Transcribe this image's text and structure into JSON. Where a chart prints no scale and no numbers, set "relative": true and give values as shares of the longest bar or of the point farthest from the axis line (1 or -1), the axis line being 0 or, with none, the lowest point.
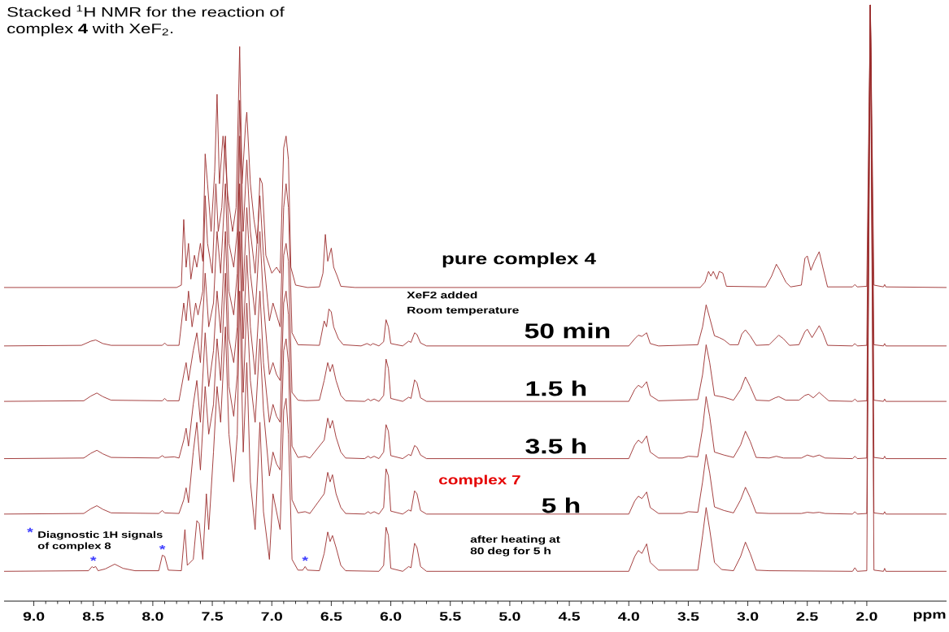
{
  "chart_data": {
    "type": "line",
    "relative": true,
    "title": "Stacked $^{1}$H NMR for the reaction of complex **4** with XeF$_{2}$.",
    "xlabel": "ppm",
    "xlim": [
      9.25,
      1.33
    ],
    "xticks": [
      {
        "value": 9.0,
        "label": "9.0"
      },
      {
        "value": 8.5,
        "label": "8.5"
      },
      {
        "value": 8.0,
        "label": "8.0"
      },
      {
        "value": 7.5,
        "label": "7.5"
      },
      {
        "value": 7.0,
        "label": "7.0"
      },
      {
        "value": 6.5,
        "label": "6.5"
      },
      {
        "value": 6.0,
        "label": "6.0"
      },
      {
        "value": 5.5,
        "label": "5.5"
      },
      {
        "value": 5.0,
        "label": "5.0"
      },
      {
        "value": 4.5,
        "label": "4.5"
      },
      {
        "value": 4.0,
        "label": "4.0"
      },
      {
        "value": 3.5,
        "label": "3.5"
      },
      {
        "value": 3.0,
        "label": "3.0"
      },
      {
        "value": 2.5,
        "label": "2.5"
      },
      {
        "value": 2.0,
        "label": "2.0"
      }
    ],
    "annotations": [
      "XeF2 added",
      "Room temperature",
      "complex 7",
      "*",
      "Diagnostic 1H signals of complex **8**",
      {
        "text": "*",
        "x": 8.5,
        "y": 0.058
      },
      {
        "text": "*",
        "x": 7.92,
        "y": 0.077
      },
      {
        "text": "*",
        "x": 6.72,
        "y": 0.058
      }
    ],
    "series": [
      {
        "name": "pure complex **4**",
        "color": "#9b2c2c",
        "x": [
          9.25,
          7.8,
          7.76,
          7.74,
          7.72,
          7.7,
          7.68,
          7.65,
          7.63,
          7.6,
          7.58,
          7.56,
          7.54,
          7.51,
          7.48,
          7.46,
          7.44,
          7.41,
          7.39,
          7.37,
          7.33,
          7.3,
          7.27,
          7.25,
          7.22,
          7.21,
          7.18,
          7.15,
          7.12,
          7.1,
          7.08,
          7.05,
          7.0,
          6.96,
          6.93,
          6.9,
          6.88,
          6.86,
          6.84,
          6.8,
          6.7,
          6.6,
          6.57,
          6.55,
          6.53,
          6.5,
          6.48,
          6.45,
          6.42,
          6.3,
          3.4,
          3.36,
          3.33,
          3.31,
          3.29,
          3.26,
          3.24,
          3.21,
          3.18,
          2.85,
          2.8,
          2.76,
          2.73,
          2.68,
          2.64,
          2.55,
          2.52,
          2.5,
          2.47,
          2.44,
          2.4,
          2.37,
          2.33,
          2.12,
          2.1,
          2.08,
          2.0,
          1.97,
          1.94,
          1.86,
          1.85,
          1.84,
          1.33
        ],
        "values": [
          0.526,
          0.526,
          0.53,
          0.64,
          0.56,
          0.6,
          0.54,
          0.58,
          0.56,
          0.6,
          0.57,
          0.75,
          0.7,
          0.62,
          0.72,
          0.85,
          0.7,
          0.78,
          0.74,
          0.68,
          0.62,
          0.66,
          0.93,
          0.7,
          0.8,
          0.82,
          0.7,
          0.64,
          0.6,
          0.71,
          0.7,
          0.58,
          0.55,
          0.56,
          0.55,
          0.76,
          0.78,
          0.74,
          0.56,
          0.53,
          0.526,
          0.527,
          0.55,
          0.615,
          0.57,
          0.592,
          0.56,
          0.545,
          0.528,
          0.526,
          0.526,
          0.535,
          0.553,
          0.545,
          0.553,
          0.54,
          0.553,
          0.55,
          0.528,
          0.527,
          0.545,
          0.565,
          0.555,
          0.535,
          0.527,
          0.53,
          0.575,
          0.579,
          0.555,
          0.57,
          0.586,
          0.56,
          0.527,
          0.527,
          0.531,
          0.527,
          0.528,
          1.0,
          0.53,
          0.527,
          0.531,
          0.527,
          0.526
        ]
      },
      {
        "name": "50 min",
        "color": "#9b2c2c",
        "x": [
          9.25,
          8.6,
          8.52,
          8.48,
          8.42,
          8.35,
          7.92,
          7.9,
          7.88,
          7.78,
          7.74,
          7.72,
          7.7,
          7.67,
          7.64,
          7.62,
          7.58,
          7.56,
          7.54,
          7.5,
          7.47,
          7.45,
          7.42,
          7.39,
          7.36,
          7.32,
          7.29,
          7.27,
          7.24,
          7.21,
          7.18,
          7.14,
          7.1,
          7.07,
          7.02,
          6.99,
          6.96,
          6.93,
          6.9,
          6.88,
          6.86,
          6.83,
          6.78,
          6.6,
          6.56,
          6.54,
          6.52,
          6.5,
          6.48,
          6.44,
          6.4,
          6.25,
          6.2,
          6.17,
          6.15,
          6.1,
          6.06,
          6.04,
          6.02,
          6.0,
          5.9,
          5.85,
          5.83,
          5.8,
          5.78,
          5.75,
          5.7,
          4.0,
          3.95,
          3.92,
          3.89,
          3.85,
          3.82,
          3.75,
          3.42,
          3.38,
          3.35,
          3.32,
          3.28,
          3.24,
          3.2,
          3.15,
          3.08,
          3.05,
          3.02,
          2.98,
          2.93,
          2.82,
          2.77,
          2.74,
          2.7,
          2.65,
          2.57,
          2.52,
          2.5,
          2.46,
          2.4,
          2.37,
          2.33,
          2.12,
          2.1,
          2.08,
          2.0,
          1.97,
          1.94,
          1.86,
          1.85,
          1.84,
          1.33
        ],
        "values": [
          0.428,
          0.429,
          0.436,
          0.438,
          0.432,
          0.429,
          0.429,
          0.433,
          0.429,
          0.429,
          0.5,
          0.47,
          0.52,
          0.46,
          0.5,
          0.48,
          0.52,
          0.68,
          0.6,
          0.55,
          0.7,
          0.62,
          0.66,
          0.78,
          0.6,
          0.56,
          0.62,
          0.84,
          0.62,
          0.74,
          0.62,
          0.55,
          0.68,
          0.58,
          0.47,
          0.5,
          0.48,
          0.46,
          0.66,
          0.7,
          0.66,
          0.45,
          0.43,
          0.429,
          0.47,
          0.46,
          0.49,
          0.485,
          0.46,
          0.44,
          0.43,
          0.428,
          0.432,
          0.429,
          0.432,
          0.428,
          0.435,
          0.472,
          0.46,
          0.432,
          0.428,
          0.436,
          0.434,
          0.45,
          0.447,
          0.433,
          0.428,
          0.428,
          0.44,
          0.446,
          0.444,
          0.45,
          0.432,
          0.428,
          0.43,
          0.46,
          0.497,
          0.475,
          0.445,
          0.442,
          0.438,
          0.43,
          0.43,
          0.448,
          0.455,
          0.445,
          0.429,
          0.43,
          0.44,
          0.446,
          0.44,
          0.429,
          0.43,
          0.452,
          0.456,
          0.442,
          0.462,
          0.45,
          0.429,
          0.428,
          0.432,
          0.428,
          0.429,
          1.0,
          0.43,
          0.428,
          0.432,
          0.428,
          0.428
        ]
      },
      {
        "name": "1.5 h",
        "color": "#9b2c2c",
        "x": [
          9.25,
          8.58,
          8.52,
          8.47,
          8.42,
          8.35,
          7.92,
          7.9,
          7.88,
          7.78,
          7.74,
          7.72,
          7.7,
          7.66,
          7.63,
          7.6,
          7.56,
          7.53,
          7.49,
          7.46,
          7.43,
          7.39,
          7.36,
          7.32,
          7.29,
          7.27,
          7.24,
          7.21,
          7.18,
          7.14,
          7.1,
          7.07,
          7.02,
          6.99,
          6.96,
          6.93,
          6.9,
          6.88,
          6.86,
          6.83,
          6.78,
          6.72,
          6.6,
          6.56,
          6.53,
          6.51,
          6.49,
          6.46,
          6.42,
          6.38,
          6.22,
          6.19,
          6.17,
          6.14,
          6.1,
          6.06,
          6.04,
          6.02,
          6.0,
          5.9,
          5.85,
          5.83,
          5.8,
          5.78,
          5.75,
          5.7,
          4.0,
          3.95,
          3.92,
          3.89,
          3.85,
          3.82,
          3.75,
          3.42,
          3.38,
          3.35,
          3.32,
          3.28,
          3.2,
          3.12,
          3.06,
          3.02,
          2.98,
          2.93,
          2.82,
          2.77,
          2.74,
          2.68,
          2.57,
          2.52,
          2.49,
          2.45,
          2.4,
          2.36,
          2.32,
          2.12,
          2.1,
          2.08,
          2.0,
          1.97,
          1.94,
          1.86,
          1.85,
          1.84,
          1.33
        ],
        "values": [
          0.335,
          0.336,
          0.344,
          0.349,
          0.343,
          0.337,
          0.336,
          0.34,
          0.336,
          0.336,
          0.38,
          0.4,
          0.37,
          0.42,
          0.45,
          0.4,
          0.55,
          0.46,
          0.5,
          0.62,
          0.55,
          0.7,
          0.52,
          0.48,
          0.55,
          0.78,
          0.52,
          0.66,
          0.55,
          0.48,
          0.62,
          0.5,
          0.38,
          0.4,
          0.38,
          0.37,
          0.58,
          0.6,
          0.57,
          0.35,
          0.337,
          0.336,
          0.337,
          0.37,
          0.4,
          0.385,
          0.397,
          0.37,
          0.345,
          0.336,
          0.335,
          0.339,
          0.336,
          0.339,
          0.335,
          0.345,
          0.406,
          0.39,
          0.34,
          0.335,
          0.342,
          0.34,
          0.371,
          0.366,
          0.341,
          0.335,
          0.335,
          0.355,
          0.362,
          0.358,
          0.368,
          0.345,
          0.336,
          0.338,
          0.38,
          0.43,
          0.4,
          0.345,
          0.342,
          0.337,
          0.355,
          0.376,
          0.36,
          0.337,
          0.336,
          0.341,
          0.343,
          0.337,
          0.337,
          0.345,
          0.347,
          0.341,
          0.35,
          0.343,
          0.336,
          0.335,
          0.339,
          0.335,
          0.336,
          1.0,
          0.337,
          0.335,
          0.339,
          0.335,
          0.335
        ]
      },
      {
        "name": "3.5 h",
        "color": "#9b2c2c",
        "x": [
          9.25,
          8.58,
          8.52,
          8.47,
          8.42,
          8.35,
          7.95,
          7.92,
          7.9,
          7.82,
          7.78,
          7.74,
          7.72,
          7.7,
          7.66,
          7.63,
          7.6,
          7.56,
          7.53,
          7.49,
          7.46,
          7.43,
          7.39,
          7.36,
          7.32,
          7.29,
          7.27,
          7.24,
          7.21,
          7.18,
          7.14,
          7.1,
          7.07,
          7.02,
          6.99,
          6.96,
          6.93,
          6.9,
          6.88,
          6.86,
          6.83,
          6.78,
          6.72,
          6.68,
          6.56,
          6.53,
          6.51,
          6.49,
          6.46,
          6.42,
          6.38,
          6.22,
          6.19,
          6.17,
          6.14,
          6.1,
          6.06,
          6.04,
          6.02,
          6.0,
          5.9,
          5.85,
          5.83,
          5.8,
          5.78,
          5.75,
          5.7,
          4.0,
          3.95,
          3.92,
          3.89,
          3.85,
          3.82,
          3.75,
          3.55,
          3.5,
          3.42,
          3.38,
          3.35,
          3.32,
          3.28,
          3.2,
          3.12,
          3.06,
          3.02,
          2.98,
          2.93,
          2.82,
          2.76,
          2.7,
          2.55,
          2.5,
          2.45,
          2.4,
          2.35,
          2.12,
          2.1,
          2.08,
          2.0,
          1.97,
          1.94,
          1.86,
          1.85,
          1.84,
          1.33
        ],
        "values": [
          0.239,
          0.24,
          0.248,
          0.253,
          0.247,
          0.241,
          0.24,
          0.244,
          0.241,
          0.242,
          0.24,
          0.27,
          0.29,
          0.26,
          0.33,
          0.37,
          0.3,
          0.45,
          0.36,
          0.42,
          0.52,
          0.45,
          0.62,
          0.44,
          0.4,
          0.46,
          0.7,
          0.44,
          0.58,
          0.46,
          0.38,
          0.52,
          0.4,
          0.3,
          0.33,
          0.31,
          0.3,
          0.5,
          0.52,
          0.48,
          0.26,
          0.241,
          0.243,
          0.24,
          0.27,
          0.307,
          0.29,
          0.303,
          0.275,
          0.25,
          0.24,
          0.239,
          0.243,
          0.24,
          0.243,
          0.239,
          0.25,
          0.296,
          0.285,
          0.244,
          0.239,
          0.246,
          0.244,
          0.261,
          0.258,
          0.245,
          0.239,
          0.239,
          0.262,
          0.27,
          0.265,
          0.277,
          0.25,
          0.24,
          0.24,
          0.243,
          0.242,
          0.29,
          0.343,
          0.31,
          0.25,
          0.245,
          0.241,
          0.262,
          0.285,
          0.268,
          0.241,
          0.24,
          0.243,
          0.24,
          0.24,
          0.245,
          0.242,
          0.245,
          0.24,
          0.239,
          0.243,
          0.239,
          0.24,
          1.0,
          0.241,
          0.239,
          0.243,
          0.239,
          0.239
        ]
      },
      {
        "name": "5 h",
        "color": "#9b2c2c",
        "x": [
          9.25,
          8.58,
          8.52,
          8.47,
          8.42,
          8.35,
          7.95,
          7.92,
          7.9,
          7.78,
          7.74,
          7.72,
          7.7,
          7.66,
          7.63,
          7.6,
          7.56,
          7.53,
          7.49,
          7.46,
          7.43,
          7.39,
          7.36,
          7.32,
          7.29,
          7.27,
          7.24,
          7.21,
          7.18,
          7.14,
          7.1,
          7.07,
          7.02,
          6.99,
          6.96,
          6.93,
          6.9,
          6.88,
          6.86,
          6.83,
          6.78,
          6.72,
          6.68,
          6.56,
          6.53,
          6.51,
          6.49,
          6.46,
          6.42,
          6.38,
          6.22,
          6.19,
          6.17,
          6.14,
          6.1,
          6.06,
          6.04,
          6.02,
          6.0,
          5.9,
          5.85,
          5.83,
          5.8,
          5.78,
          5.75,
          5.7,
          4.0,
          3.95,
          3.92,
          3.89,
          3.85,
          3.82,
          3.75,
          3.55,
          3.5,
          3.42,
          3.38,
          3.35,
          3.32,
          3.28,
          3.2,
          3.12,
          3.06,
          3.02,
          2.98,
          2.93,
          2.82,
          2.55,
          2.5,
          2.45,
          2.4,
          2.35,
          2.12,
          2.1,
          2.08,
          2.0,
          1.97,
          1.94,
          1.86,
          1.85,
          1.84,
          1.33
        ],
        "values": [
          0.146,
          0.147,
          0.155,
          0.16,
          0.154,
          0.148,
          0.147,
          0.152,
          0.148,
          0.147,
          0.17,
          0.19,
          0.165,
          0.25,
          0.3,
          0.22,
          0.36,
          0.28,
          0.33,
          0.44,
          0.37,
          0.55,
          0.36,
          0.31,
          0.38,
          0.62,
          0.35,
          0.5,
          0.37,
          0.3,
          0.44,
          0.32,
          0.21,
          0.25,
          0.23,
          0.22,
          0.42,
          0.44,
          0.4,
          0.17,
          0.148,
          0.15,
          0.147,
          0.18,
          0.216,
          0.2,
          0.212,
          0.18,
          0.157,
          0.147,
          0.146,
          0.15,
          0.147,
          0.15,
          0.146,
          0.157,
          0.222,
          0.21,
          0.151,
          0.146,
          0.153,
          0.151,
          0.185,
          0.18,
          0.152,
          0.146,
          0.146,
          0.168,
          0.176,
          0.172,
          0.183,
          0.157,
          0.147,
          0.147,
          0.15,
          0.149,
          0.2,
          0.246,
          0.215,
          0.158,
          0.152,
          0.148,
          0.17,
          0.191,
          0.174,
          0.148,
          0.147,
          0.147,
          0.149,
          0.148,
          0.149,
          0.147,
          0.146,
          0.15,
          0.146,
          0.147,
          1.0,
          0.148,
          0.146,
          0.15,
          0.146,
          0.146
        ]
      },
      {
        "name": "after heating at 80 deg for 5 h",
        "color": "#9b2c2c",
        "x": [
          9.25,
          8.54,
          8.51,
          8.5,
          8.48,
          8.46,
          8.4,
          8.32,
          8.25,
          8.15,
          7.95,
          7.92,
          7.9,
          7.87,
          7.76,
          7.73,
          7.71,
          7.66,
          7.63,
          7.61,
          7.58,
          7.55,
          7.53,
          7.49,
          7.46,
          7.43,
          7.39,
          7.36,
          7.32,
          7.29,
          7.27,
          7.24,
          7.21,
          7.18,
          7.14,
          7.1,
          7.07,
          7.02,
          6.99,
          6.96,
          6.93,
          6.9,
          6.88,
          6.86,
          6.83,
          6.78,
          6.74,
          6.72,
          6.7,
          6.6,
          6.56,
          6.53,
          6.51,
          6.49,
          6.46,
          6.42,
          6.38,
          6.1,
          6.06,
          6.04,
          6.02,
          6.0,
          5.9,
          5.85,
          5.83,
          5.8,
          5.78,
          5.75,
          5.7,
          4.0,
          3.95,
          3.92,
          3.89,
          3.85,
          3.82,
          3.75,
          3.42,
          3.38,
          3.35,
          3.32,
          3.28,
          3.22,
          3.12,
          3.06,
          3.02,
          2.98,
          2.93,
          2.82,
          2.12,
          2.1,
          2.08,
          2.0,
          1.97,
          1.94,
          1.86,
          1.85,
          1.84,
          1.33
        ],
        "values": [
          0.05,
          0.051,
          0.058,
          0.056,
          0.058,
          0.051,
          0.054,
          0.062,
          0.055,
          0.051,
          0.051,
          0.077,
          0.075,
          0.052,
          0.051,
          0.12,
          0.06,
          0.07,
          0.135,
          0.13,
          0.07,
          0.18,
          0.12,
          0.25,
          0.36,
          0.3,
          0.46,
          0.28,
          0.2,
          0.28,
          0.52,
          0.25,
          0.4,
          0.2,
          0.12,
          0.3,
          0.15,
          0.07,
          0.18,
          0.15,
          0.12,
          0.32,
          0.34,
          0.28,
          0.07,
          0.052,
          0.052,
          0.058,
          0.052,
          0.051,
          0.08,
          0.116,
          0.1,
          0.11,
          0.09,
          0.06,
          0.051,
          0.05,
          0.06,
          0.124,
          0.11,
          0.055,
          0.05,
          0.058,
          0.056,
          0.097,
          0.09,
          0.058,
          0.05,
          0.05,
          0.075,
          0.085,
          0.08,
          0.096,
          0.065,
          0.052,
          0.052,
          0.11,
          0.157,
          0.12,
          0.065,
          0.053,
          0.051,
          0.075,
          0.099,
          0.08,
          0.052,
          0.051,
          0.05,
          0.056,
          0.05,
          0.051,
          1.0,
          0.052,
          0.05,
          0.055,
          0.05,
          0.05
        ]
      }
    ]
  }
}
